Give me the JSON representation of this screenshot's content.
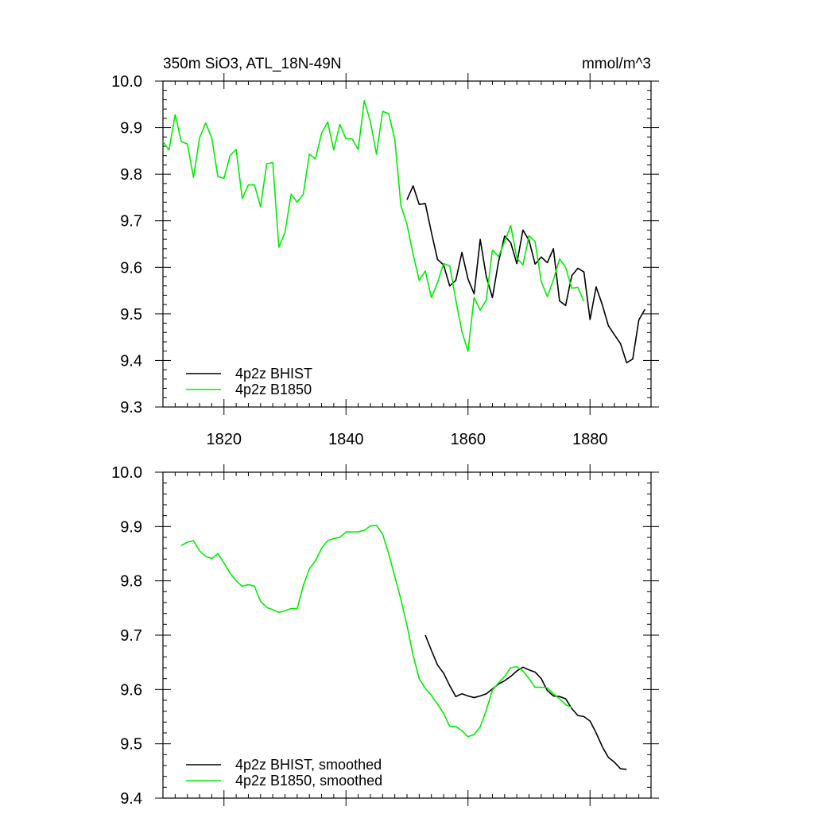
{
  "chart_data": [
    {
      "type": "line",
      "title": "350m SiO3, ATL_18N-49N",
      "units": "mmol/m^3",
      "xlabel": "",
      "ylabel": "",
      "xlim": [
        1810,
        1890
      ],
      "ylim": [
        9.3,
        10.0
      ],
      "xticks": [
        1820,
        1840,
        1860,
        1880
      ],
      "yticks": [
        9.3,
        9.4,
        9.5,
        9.6,
        9.7,
        9.8,
        9.9,
        10.0
      ],
      "ytick_labels": [
        "9.3",
        "9.4",
        "9.5",
        "9.6",
        "9.7",
        "9.8",
        "9.9",
        "10.0"
      ],
      "legend": "bottom-left",
      "series": [
        {
          "name": "4p2z BHIST",
          "color": "#000000",
          "x_start": 1850,
          "values": [
            9.745,
            9.775,
            9.735,
            9.737,
            9.675,
            9.617,
            9.605,
            9.56,
            9.572,
            9.632,
            9.575,
            9.543,
            9.66,
            9.58,
            9.535,
            9.612,
            9.667,
            9.653,
            9.608,
            9.68,
            9.658,
            9.607,
            9.622,
            9.61,
            9.64,
            9.528,
            9.518,
            9.582,
            9.598,
            9.59,
            9.488,
            9.558,
            9.52,
            9.475,
            9.455,
            9.436,
            9.395,
            9.403,
            9.487,
            9.51
          ]
        },
        {
          "name": "4p2z B1850",
          "color": "#00ee00",
          "x_start": 1810,
          "values": [
            9.87,
            9.852,
            9.928,
            9.87,
            9.865,
            9.793,
            9.878,
            9.91,
            9.878,
            9.795,
            9.791,
            9.84,
            9.853,
            9.748,
            9.777,
            9.777,
            9.73,
            9.822,
            9.825,
            9.643,
            9.675,
            9.757,
            9.74,
            9.757,
            9.843,
            9.833,
            9.888,
            9.912,
            9.852,
            9.907,
            9.876,
            9.876,
            9.853,
            9.958,
            9.913,
            9.843,
            9.935,
            9.93,
            9.875,
            9.733,
            9.692,
            9.628,
            9.572,
            9.592,
            9.535,
            9.567,
            9.608,
            9.603,
            9.53,
            9.462,
            9.42,
            9.535,
            9.508,
            9.53,
            9.637,
            9.623,
            9.655,
            9.69,
            9.62,
            9.605,
            9.668,
            9.655,
            9.57,
            9.537,
            9.573,
            9.618,
            9.6,
            9.555,
            9.557,
            9.527
          ]
        }
      ]
    },
    {
      "type": "line",
      "title": "",
      "xlabel": "",
      "ylabel": "",
      "xlim": [
        1810,
        1890
      ],
      "ylim": [
        9.4,
        10.0
      ],
      "xticks": [
        1820,
        1840,
        1860,
        1880
      ],
      "yticks": [
        9.4,
        9.5,
        9.6,
        9.7,
        9.8,
        9.9,
        10.0
      ],
      "ytick_labels": [
        "9.4",
        "9.5",
        "9.6",
        "9.7",
        "9.8",
        "9.9",
        "10.0"
      ],
      "legend": "bottom-left",
      "series": [
        {
          "name": "4p2z BHIST, smoothed",
          "color": "#000000",
          "x_start": 1853,
          "values": [
            9.7,
            9.672,
            9.645,
            9.63,
            9.607,
            9.587,
            9.592,
            9.588,
            9.585,
            9.588,
            9.592,
            9.601,
            9.61,
            9.616,
            9.624,
            9.634,
            9.641,
            9.636,
            9.632,
            9.62,
            9.598,
            9.588,
            9.587,
            9.583,
            9.565,
            9.552,
            9.55,
            9.542,
            9.52,
            9.495,
            9.475,
            9.466,
            9.454,
            9.453
          ]
        },
        {
          "name": "4p2z B1850, smoothed",
          "color": "#00ee00",
          "x_start": 1813,
          "values": [
            9.865,
            9.871,
            9.874,
            9.855,
            9.845,
            9.841,
            9.85,
            9.833,
            9.814,
            9.8,
            9.79,
            9.793,
            9.79,
            9.762,
            9.751,
            9.747,
            9.742,
            9.745,
            9.749,
            9.749,
            9.791,
            9.822,
            9.837,
            9.86,
            9.874,
            9.878,
            9.88,
            9.89,
            9.89,
            9.89,
            9.893,
            9.901,
            9.902,
            9.886,
            9.85,
            9.808,
            9.766,
            9.718,
            9.663,
            9.62,
            9.602,
            9.589,
            9.573,
            9.556,
            9.532,
            9.532,
            9.524,
            9.513,
            9.517,
            9.531,
            9.562,
            9.599,
            9.612,
            9.624,
            9.64,
            9.642,
            9.634,
            9.62,
            9.604,
            9.604,
            9.603,
            9.592,
            9.583,
            9.572,
            9.567
          ]
        }
      ]
    }
  ]
}
